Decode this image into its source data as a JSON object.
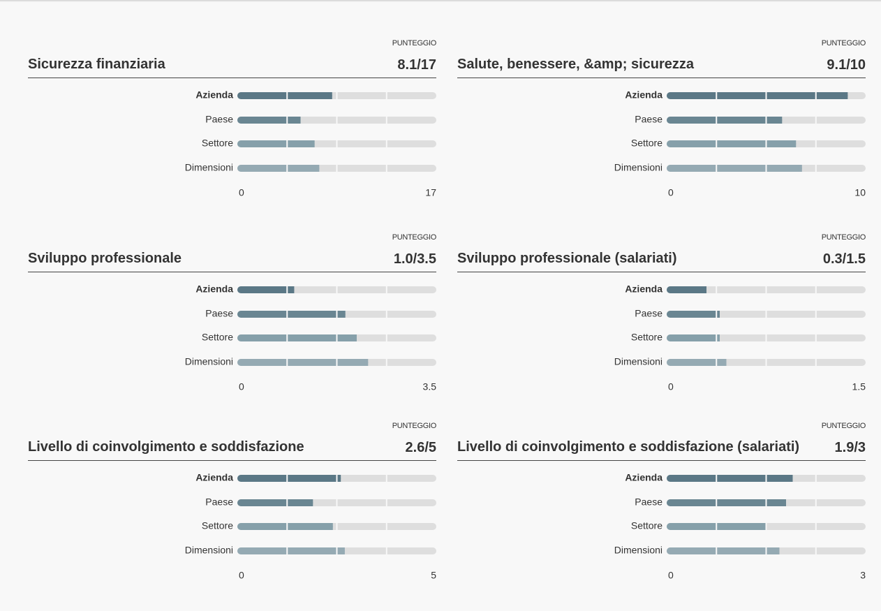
{
  "chart_data": [
    {
      "type": "hbar",
      "title": "Sicurezza finanziaria",
      "score_label": "PUNTEGGIO",
      "score": "8.1/17",
      "categories": [
        "Azienda",
        "Paese",
        "Settore",
        "Dimensioni"
      ],
      "values": [
        8.1,
        5.4,
        6.6,
        7.0
      ],
      "colors": [
        "#5b7886",
        "#6a8692",
        "#86a0aa",
        "#95aab3"
      ],
      "xlim": [
        0,
        17
      ],
      "xticks": [
        0,
        17
      ]
    },
    {
      "type": "hbar",
      "title": "Salute, benessere, &amp; sicurezza",
      "score_label": "PUNTEGGIO",
      "score": "9.1/10",
      "categories": [
        "Azienda",
        "Paese",
        "Settore",
        "Dimensioni"
      ],
      "values": [
        9.1,
        5.8,
        6.5,
        6.8
      ],
      "colors": [
        "#5b7886",
        "#6a8692",
        "#86a0aa",
        "#95aab3"
      ],
      "xlim": [
        0,
        10
      ],
      "xticks": [
        0,
        10
      ]
    },
    {
      "type": "hbar",
      "title": "Sviluppo professionale",
      "score_label": "PUNTEGGIO",
      "score": "1.0/3.5",
      "categories": [
        "Azienda",
        "Paese",
        "Settore",
        "Dimensioni"
      ],
      "values": [
        1.0,
        1.9,
        2.1,
        2.3
      ],
      "colors": [
        "#5b7886",
        "#6a8692",
        "#86a0aa",
        "#95aab3"
      ],
      "xlim": [
        0,
        3.5
      ],
      "xticks": [
        0,
        3.5
      ]
    },
    {
      "type": "hbar",
      "title": "Sviluppo professionale (salariati)",
      "score_label": "PUNTEGGIO",
      "score": "0.3/1.5",
      "categories": [
        "Azienda",
        "Paese",
        "Settore",
        "Dimensioni"
      ],
      "values": [
        0.3,
        0.4,
        0.4,
        0.45
      ],
      "colors": [
        "#5b7886",
        "#6a8692",
        "#86a0aa",
        "#95aab3"
      ],
      "xlim": [
        0,
        1.5
      ],
      "xticks": [
        0,
        1.5
      ]
    },
    {
      "type": "hbar",
      "title": "Livello di coinvolgimento e soddisfazione",
      "score_label": "PUNTEGGIO",
      "score": "2.6/5",
      "categories": [
        "Azienda",
        "Paese",
        "Settore",
        "Dimensioni"
      ],
      "values": [
        2.6,
        1.9,
        2.4,
        2.7
      ],
      "colors": [
        "#5b7886",
        "#6a8692",
        "#86a0aa",
        "#95aab3"
      ],
      "xlim": [
        0,
        5
      ],
      "xticks": [
        0,
        5
      ]
    },
    {
      "type": "hbar",
      "title": "Livello di coinvolgimento e soddisfazione (salariati)",
      "score_label": "PUNTEGGIO",
      "score": "1.9/3",
      "categories": [
        "Azienda",
        "Paese",
        "Settore",
        "Dimensioni"
      ],
      "values": [
        1.9,
        1.8,
        1.5,
        1.7
      ],
      "colors": [
        "#5b7886",
        "#6a8692",
        "#86a0aa",
        "#95aab3"
      ],
      "xlim": [
        0,
        3
      ],
      "xticks": [
        0,
        3
      ]
    }
  ]
}
